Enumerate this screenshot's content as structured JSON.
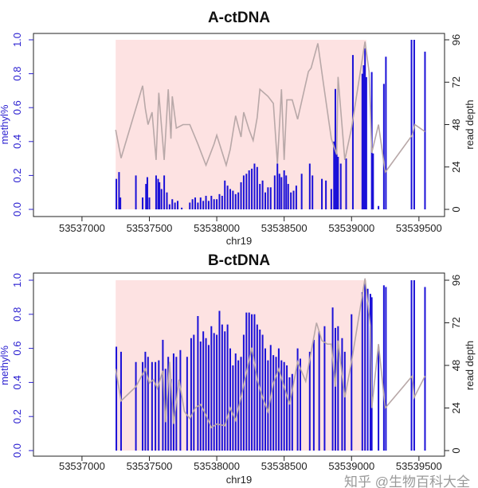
{
  "colors": {
    "methyl": "#1a10d8",
    "depth": "#b8a8a8",
    "shade": "#fde2e2",
    "axis_left": "#2a1fd0",
    "axis": "#222222"
  },
  "watermark": "知乎 @生物百科大全",
  "chart_data": [
    {
      "type": "bar",
      "title": "A-ctDNA",
      "xlabel": "chr19",
      "ylabel": "methyl%",
      "y2label": "read depth",
      "xlim": [
        53536640,
        53539690
      ],
      "ylim": [
        0,
        1
      ],
      "y2lim": [
        0,
        96
      ],
      "xticks": [
        "53537000",
        "53537500",
        "53538000",
        "53538500",
        "53539000",
        "53539500"
      ],
      "yticks": [
        "0.0",
        "0.2",
        "0.4",
        "0.6",
        "0.8",
        "1.0"
      ],
      "y2ticks": [
        "0",
        "24",
        "48",
        "72",
        "96"
      ],
      "shaded_region": {
        "x": [
          53537250,
          53539110
        ],
        "y": [
          0,
          1
        ]
      },
      "methyl": [
        [
          53537255,
          0.18
        ],
        [
          53537275,
          0.22
        ],
        [
          53537285,
          0.07
        ],
        [
          53537400,
          0.2
        ],
        [
          53537450,
          0.07
        ],
        [
          53537475,
          0.15
        ],
        [
          53537485,
          0.19
        ],
        [
          53537500,
          0.07
        ],
        [
          53537550,
          0.2
        ],
        [
          53537565,
          0.18
        ],
        [
          53537575,
          0.16
        ],
        [
          53537590,
          0.12
        ],
        [
          53537610,
          0.2
        ],
        [
          53537630,
          0.1
        ],
        [
          53537650,
          0.03
        ],
        [
          53537670,
          0.06
        ],
        [
          53537690,
          0.04
        ],
        [
          53537710,
          0.05
        ],
        [
          53537740,
          0.01
        ],
        [
          53537800,
          0.04
        ],
        [
          53537820,
          0.06
        ],
        [
          53537840,
          0.07
        ],
        [
          53537860,
          0.04
        ],
        [
          53537880,
          0.07
        ],
        [
          53537900,
          0.05
        ],
        [
          53537920,
          0.08
        ],
        [
          53537940,
          0.05
        ],
        [
          53537960,
          0.08
        ],
        [
          53537980,
          0.06
        ],
        [
          53538000,
          0.06
        ],
        [
          53538020,
          0.09
        ],
        [
          53538040,
          0.08
        ],
        [
          53538060,
          0.17
        ],
        [
          53538080,
          0.14
        ],
        [
          53538100,
          0.12
        ],
        [
          53538120,
          0.11
        ],
        [
          53538140,
          0.09
        ],
        [
          53538160,
          0.1
        ],
        [
          53538180,
          0.16
        ],
        [
          53538200,
          0.2
        ],
        [
          53538220,
          0.21
        ],
        [
          53538240,
          0.23
        ],
        [
          53538260,
          0.24
        ],
        [
          53538280,
          0.27
        ],
        [
          53538300,
          0.25
        ],
        [
          53538320,
          0.15
        ],
        [
          53538340,
          0.17
        ],
        [
          53538360,
          0.1
        ],
        [
          53538380,
          0.13
        ],
        [
          53538400,
          0.13
        ],
        [
          53538430,
          0.2
        ],
        [
          53538450,
          0.27
        ],
        [
          53538465,
          0.21
        ],
        [
          53538480,
          0.19
        ],
        [
          53538500,
          0.23
        ],
        [
          53538515,
          0.2
        ],
        [
          53538530,
          0.15
        ],
        [
          53538550,
          0.1
        ],
        [
          53538570,
          0.11
        ],
        [
          53538590,
          0.14
        ],
        [
          53538630,
          0.21
        ],
        [
          53538690,
          0.27
        ],
        [
          53538710,
          0.2
        ],
        [
          53538780,
          0.18
        ],
        [
          53538810,
          0.17
        ],
        [
          53538850,
          0.12
        ],
        [
          53538870,
          0.4
        ],
        [
          53538880,
          0.71
        ],
        [
          53538890,
          0.33
        ],
        [
          53538900,
          0.31
        ],
        [
          53538920,
          0.27
        ],
        [
          53538960,
          0.3
        ],
        [
          53539010,
          0.91
        ],
        [
          53539080,
          0.8
        ],
        [
          53539090,
          0.85
        ],
        [
          53539100,
          0.95
        ],
        [
          53539110,
          0.78
        ],
        [
          53539150,
          0.81
        ],
        [
          53539160,
          0.33
        ],
        [
          53539200,
          0.02
        ],
        [
          53539240,
          0.74
        ],
        [
          53539255,
          0.9
        ],
        [
          53539445,
          1.0
        ],
        [
          53539465,
          1.0
        ],
        [
          53539545,
          0.93
        ]
      ],
      "depth": [
        [
          53537250,
          45
        ],
        [
          53537290,
          29
        ],
        [
          53537450,
          70
        ],
        [
          53537470,
          57
        ],
        [
          53537490,
          48
        ],
        [
          53537520,
          55
        ],
        [
          53537550,
          28
        ],
        [
          53537570,
          66
        ],
        [
          53537610,
          28
        ],
        [
          53537640,
          68
        ],
        [
          53537660,
          40
        ],
        [
          53537670,
          64
        ],
        [
          53537700,
          46
        ],
        [
          53537750,
          48
        ],
        [
          53537800,
          48
        ],
        [
          53537860,
          37
        ],
        [
          53537920,
          25
        ],
        [
          53537980,
          37
        ],
        [
          53538000,
          42
        ],
        [
          53538070,
          25
        ],
        [
          53538100,
          34
        ],
        [
          53538140,
          53
        ],
        [
          53538180,
          41
        ],
        [
          53538200,
          55
        ],
        [
          53538240,
          45
        ],
        [
          53538270,
          39
        ],
        [
          53538300,
          52
        ],
        [
          53538320,
          68
        ],
        [
          53538380,
          64
        ],
        [
          53538420,
          60
        ],
        [
          53538450,
          26
        ],
        [
          53538480,
          68
        ],
        [
          53538500,
          28
        ],
        [
          53538520,
          62
        ],
        [
          53538560,
          62
        ],
        [
          53538600,
          51
        ],
        [
          53538680,
          78
        ],
        [
          53538700,
          80
        ],
        [
          53538750,
          94
        ],
        [
          53538790,
          72
        ],
        [
          53538850,
          40
        ],
        [
          53538890,
          31
        ],
        [
          53538900,
          75
        ],
        [
          53538950,
          28
        ],
        [
          53539000,
          46
        ],
        [
          53539100,
          95
        ],
        [
          53539130,
          78
        ],
        [
          53539150,
          32
        ],
        [
          53539200,
          48
        ],
        [
          53539250,
          21
        ],
        [
          53539450,
          42
        ],
        [
          53539470,
          48
        ],
        [
          53539545,
          44
        ]
      ]
    },
    {
      "type": "bar",
      "title": "B-ctDNA",
      "xlabel": "chr19",
      "ylabel": "methyl%",
      "y2label": "read depth",
      "xlim": [
        53536640,
        53539690
      ],
      "ylim": [
        0,
        1
      ],
      "y2lim": [
        0,
        96
      ],
      "xticks": [
        "53537000",
        "53537500",
        "53538000",
        "53538500",
        "53539000",
        "53539500"
      ],
      "yticks": [
        "0.0",
        "0.2",
        "0.4",
        "0.6",
        "0.8",
        "1.0"
      ],
      "y2ticks": [
        "0",
        "24",
        "48",
        "72",
        "96"
      ],
      "shaded_region": {
        "x": [
          53537250,
          53539110
        ],
        "y": [
          0,
          1
        ]
      },
      "methyl": [
        [
          53537255,
          0.61
        ],
        [
          53537290,
          0.58
        ],
        [
          53537400,
          0.52
        ],
        [
          53537450,
          0.52
        ],
        [
          53537470,
          0.58
        ],
        [
          53537490,
          0.55
        ],
        [
          53537520,
          0.52
        ],
        [
          53537545,
          0.52
        ],
        [
          53537570,
          0.53
        ],
        [
          53537600,
          0.65
        ],
        [
          53537620,
          0.48
        ],
        [
          53537640,
          0.55
        ],
        [
          53537660,
          0.42
        ],
        [
          53537680,
          0.57
        ],
        [
          53537700,
          0.55
        ],
        [
          53537730,
          0.59
        ],
        [
          53537780,
          0.55
        ],
        [
          53537810,
          0.66
        ],
        [
          53537830,
          0.68
        ],
        [
          53537860,
          0.79
        ],
        [
          53537880,
          0.64
        ],
        [
          53537900,
          0.7
        ],
        [
          53537920,
          0.66
        ],
        [
          53537940,
          0.62
        ],
        [
          53537960,
          0.73
        ],
        [
          53537980,
          0.69
        ],
        [
          53538000,
          0.68
        ],
        [
          53538020,
          0.82
        ],
        [
          53538040,
          0.74
        ],
        [
          53538060,
          0.7
        ],
        [
          53538080,
          0.74
        ],
        [
          53538100,
          0.6
        ],
        [
          53538120,
          0.5
        ],
        [
          53538140,
          0.57
        ],
        [
          53538160,
          0.53
        ],
        [
          53538180,
          0.55
        ],
        [
          53538200,
          0.68
        ],
        [
          53538220,
          0.81
        ],
        [
          53538240,
          0.81
        ],
        [
          53538260,
          0.8
        ],
        [
          53538280,
          0.8
        ],
        [
          53538300,
          0.74
        ],
        [
          53538320,
          0.71
        ],
        [
          53538340,
          0.68
        ],
        [
          53538360,
          0.6
        ],
        [
          53538380,
          0.53
        ],
        [
          53538400,
          0.62
        ],
        [
          53538420,
          0.56
        ],
        [
          53538440,
          0.55
        ],
        [
          53538460,
          0.6
        ],
        [
          53538480,
          0.53
        ],
        [
          53538500,
          0.52
        ],
        [
          53538520,
          0.5
        ],
        [
          53538540,
          0.43
        ],
        [
          53538560,
          0.45
        ],
        [
          53538600,
          0.6
        ],
        [
          53538620,
          0.54
        ],
        [
          53538690,
          0.58
        ],
        [
          53538720,
          0.65
        ],
        [
          53538760,
          0.7
        ],
        [
          53538800,
          0.73
        ],
        [
          53538860,
          0.84
        ],
        [
          53538880,
          0.72
        ],
        [
          53538900,
          0.73
        ],
        [
          53538930,
          0.66
        ],
        [
          53538950,
          0.58
        ],
        [
          53539000,
          0.8
        ],
        [
          53539080,
          0.93
        ],
        [
          53539100,
          0.98
        ],
        [
          53539120,
          0.95
        ],
        [
          53539140,
          0.92
        ],
        [
          53539150,
          0.9
        ],
        [
          53539200,
          0.61
        ],
        [
          53539240,
          0.97
        ],
        [
          53539255,
          0.96
        ],
        [
          53539445,
          1.0
        ],
        [
          53539465,
          1.0
        ],
        [
          53539545,
          0.96
        ]
      ],
      "depth": [
        [
          53537250,
          46
        ],
        [
          53537290,
          28
        ],
        [
          53537400,
          36
        ],
        [
          53537470,
          46
        ],
        [
          53537500,
          38
        ],
        [
          53537530,
          40
        ],
        [
          53537560,
          35
        ],
        [
          53537600,
          45
        ],
        [
          53537620,
          16
        ],
        [
          53537650,
          50
        ],
        [
          53537680,
          15
        ],
        [
          53537720,
          40
        ],
        [
          53537760,
          22
        ],
        [
          53537800,
          18
        ],
        [
          53537840,
          24
        ],
        [
          53537880,
          26
        ],
        [
          53537920,
          20
        ],
        [
          53537960,
          13
        ],
        [
          53538000,
          15
        ],
        [
          53538060,
          14
        ],
        [
          53538100,
          24
        ],
        [
          53538140,
          17
        ],
        [
          53538180,
          30
        ],
        [
          53538220,
          44
        ],
        [
          53538260,
          58
        ],
        [
          53538300,
          40
        ],
        [
          53538340,
          30
        ],
        [
          53538380,
          22
        ],
        [
          53538420,
          38
        ],
        [
          53538460,
          46
        ],
        [
          53538500,
          36
        ],
        [
          53538540,
          26
        ],
        [
          53538600,
          50
        ],
        [
          53538660,
          39
        ],
        [
          53538740,
          72
        ],
        [
          53538780,
          62
        ],
        [
          53538820,
          60
        ],
        [
          53538850,
          60
        ],
        [
          53538880,
          36
        ],
        [
          53538900,
          62
        ],
        [
          53538950,
          30
        ],
        [
          53539000,
          50
        ],
        [
          53539100,
          97
        ],
        [
          53539140,
          70
        ],
        [
          53539150,
          24
        ],
        [
          53539200,
          60
        ],
        [
          53539250,
          24
        ],
        [
          53539450,
          42
        ],
        [
          53539465,
          30
        ],
        [
          53539545,
          42
        ]
      ]
    }
  ]
}
